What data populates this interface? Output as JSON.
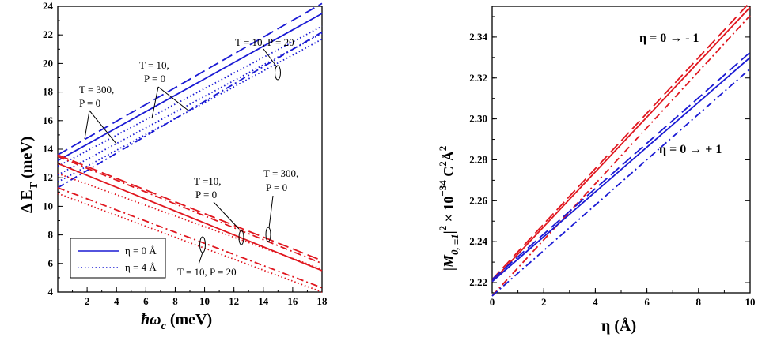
{
  "chart_data": [
    {
      "type": "line",
      "xlabel": "ħω",
      "xlabel_sub": "c",
      "xlabel_unit": " (meV)",
      "ylabel": "Δ E",
      "ylabel_sub": "T",
      "ylabel_unit": " (meV)",
      "xlim": [
        0,
        18
      ],
      "ylim": [
        4,
        24
      ],
      "xticks": [
        "2",
        "4",
        "6",
        "8",
        "10",
        "12",
        "14",
        "16",
        "18"
      ],
      "yticks": [
        "4",
        "6",
        "8",
        "10",
        "12",
        "14",
        "16",
        "18",
        "20",
        "22",
        "24"
      ],
      "legend": {
        "placement": "bottom-left",
        "entries": [
          {
            "label": "η = 0 Å",
            "style": "solid",
            "color": "#1a1ad4"
          },
          {
            "label": "η = 4 Å",
            "style": "dotted",
            "color": "#1a1ad4"
          }
        ]
      },
      "annotations": {
        "blue_top_right": "T = 10, P = 20",
        "blue_mid_1": "T = 10,",
        "blue_mid_2": "P = 0",
        "blue_left_1": "T = 300,",
        "blue_left_2": "P = 0",
        "red_mid_1": "T =10,",
        "red_mid_2": "P = 0",
        "red_right_1": "T = 300,",
        "red_right_2": "P = 0",
        "red_bottom": "T = 10, P = 20"
      },
      "series": [
        {
          "color": "#1a1ad4",
          "dash": "solid",
          "x": [
            0,
            18
          ],
          "y": [
            13.2,
            23.5
          ]
        },
        {
          "color": "#1a1ad4",
          "dash": "long-dash",
          "x": [
            0,
            18
          ],
          "y": [
            13.6,
            24.2
          ]
        },
        {
          "color": "#1a1ad4",
          "dash": "dash-dot",
          "x": [
            0,
            18
          ],
          "y": [
            11.3,
            22.2
          ]
        },
        {
          "color": "#1a1ad4",
          "dash": "dotted",
          "x": [
            0,
            18
          ],
          "y": [
            12.2,
            22.1
          ]
        },
        {
          "color": "#1a1ad4",
          "dash": "dotted",
          "x": [
            0,
            18
          ],
          "y": [
            12.8,
            22.6
          ]
        },
        {
          "color": "#1a1ad4",
          "dash": "dotted",
          "x": [
            0,
            18
          ],
          "y": [
            11.7,
            21.7
          ]
        },
        {
          "color": "#e0161e",
          "dash": "solid",
          "x": [
            0,
            18
          ],
          "y": [
            13.0,
            5.5
          ]
        },
        {
          "color": "#e0161e",
          "dash": "long-dash",
          "x": [
            0,
            18
          ],
          "y": [
            13.6,
            6.2
          ]
        },
        {
          "color": "#e0161e",
          "dash": "dash-dot",
          "x": [
            0,
            18
          ],
          "y": [
            13.5,
            6.0
          ]
        },
        {
          "color": "#e0161e",
          "dash": "dotted",
          "x": [
            0,
            18
          ],
          "y": [
            12.3,
            5.6
          ]
        },
        {
          "color": "#e0161e",
          "dash": "dash-dot",
          "x": [
            0,
            18
          ],
          "y": [
            11.3,
            4.3
          ]
        },
        {
          "color": "#e0161e",
          "dash": "dotted",
          "x": [
            0,
            18
          ],
          "y": [
            10.9,
            4.0
          ]
        }
      ]
    },
    {
      "type": "line",
      "xlabel": "η (Å)",
      "ylabel_main": "|M",
      "ylabel_sub": "0, ±1",
      "ylabel_rest": "|",
      "ylabel_sup": "2",
      "ylabel_times": " × 10",
      "ylabel_exp": "−34",
      "ylabel_unit1": " C",
      "ylabel_unit_sup1": "2",
      "ylabel_unit2": "Å",
      "ylabel_unit_sup2": "2",
      "xlim": [
        0,
        10
      ],
      "ylim": [
        2.215,
        2.355
      ],
      "xticks": [
        "0",
        "2",
        "4",
        "6",
        "8",
        "10"
      ],
      "yticks": [
        "2.22",
        "2.24",
        "2.26",
        "2.28",
        "2.30",
        "2.32",
        "2.34"
      ],
      "annotations": {
        "red_label": "η = 0 → - 1",
        "blue_label": "η  = 0 →  + 1"
      },
      "series": [
        {
          "color": "#e0161e",
          "dash": "solid",
          "x": [
            0,
            10
          ],
          "y": [
            2.2205,
            2.3545
          ]
        },
        {
          "color": "#e0161e",
          "dash": "long-dash",
          "x": [
            0,
            10
          ],
          "y": [
            2.2215,
            2.357
          ]
        },
        {
          "color": "#e0161e",
          "dash": "dash-dot",
          "x": [
            0,
            10
          ],
          "y": [
            2.2135,
            2.3505
          ]
        },
        {
          "color": "#1a1ad4",
          "dash": "solid",
          "x": [
            0,
            10
          ],
          "y": [
            2.2205,
            2.33
          ]
        },
        {
          "color": "#1a1ad4",
          "dash": "long-dash",
          "x": [
            0,
            10
          ],
          "y": [
            2.2215,
            2.3325
          ]
        },
        {
          "color": "#1a1ad4",
          "dash": "dash-dot",
          "x": [
            0,
            10
          ],
          "y": [
            2.2135,
            2.3245
          ]
        }
      ]
    }
  ]
}
